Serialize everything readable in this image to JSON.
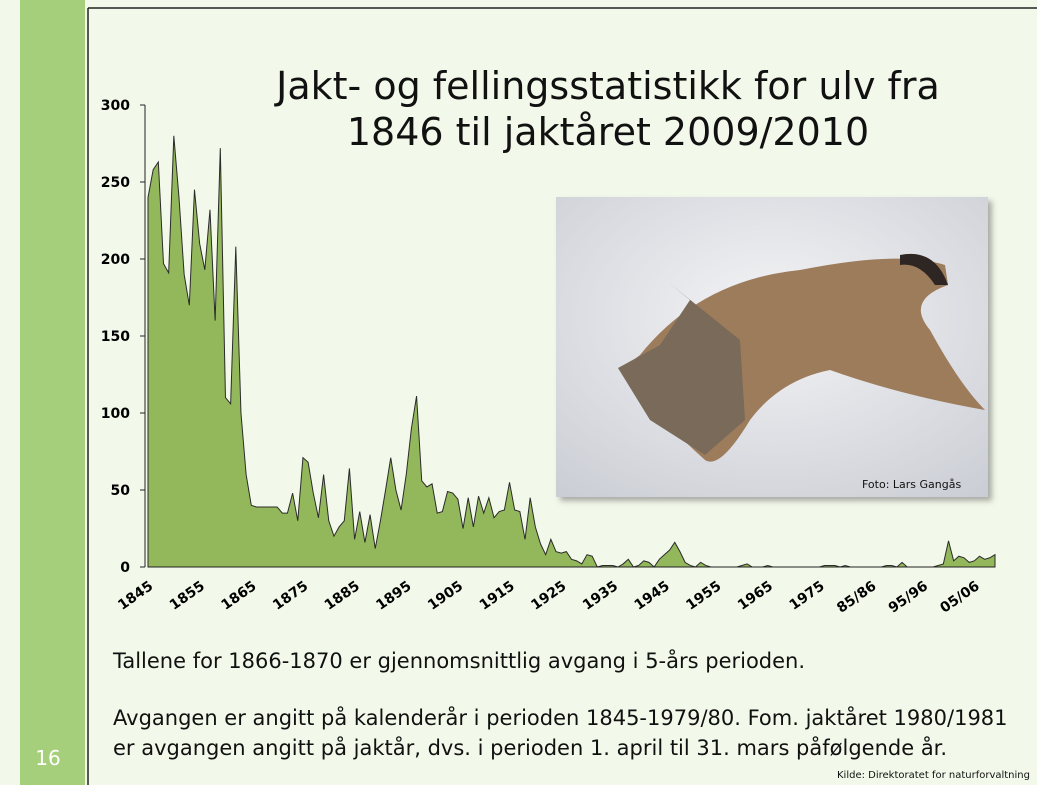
{
  "slide_number": "16",
  "chart_data": {
    "type": "area",
    "title": [
      "Jakt- og fellingsstatistikk for ulv fra",
      "1846 til jaktåret 2009/2010"
    ],
    "categories": [
      "1845",
      null,
      null,
      null,
      null,
      null,
      null,
      null,
      null,
      null,
      "1855",
      null,
      null,
      null,
      null,
      null,
      null,
      null,
      null,
      null,
      "1865",
      null,
      null,
      null,
      null,
      null,
      null,
      null,
      null,
      null,
      "1875",
      null,
      null,
      null,
      null,
      null,
      null,
      null,
      null,
      null,
      "1885",
      null,
      null,
      null,
      null,
      null,
      null,
      null,
      null,
      null,
      "1895",
      null,
      null,
      null,
      null,
      null,
      null,
      null,
      null,
      null,
      "1905",
      null,
      null,
      null,
      null,
      null,
      null,
      null,
      null,
      null,
      "1915",
      null,
      null,
      null,
      null,
      null,
      null,
      null,
      null,
      null,
      "1925",
      null,
      null,
      null,
      null,
      null,
      null,
      null,
      null,
      null,
      "1935",
      null,
      null,
      null,
      null,
      null,
      null,
      null,
      null,
      null,
      "1945",
      null,
      null,
      null,
      null,
      null,
      null,
      null,
      null,
      null,
      "1955",
      null,
      null,
      null,
      null,
      null,
      null,
      null,
      null,
      null,
      "1965",
      null,
      null,
      null,
      null,
      null,
      null,
      null,
      null,
      null,
      "1975",
      null,
      null,
      null,
      null,
      null,
      null,
      null,
      null,
      null,
      "85/86",
      null,
      null,
      null,
      null,
      null,
      null,
      null,
      null,
      null,
      "95/96",
      null,
      null,
      null,
      null,
      null,
      null,
      null,
      null,
      null,
      "05/06",
      null,
      null,
      null,
      null
    ],
    "values": [
      240,
      258,
      263,
      197,
      191,
      280,
      240,
      190,
      170,
      245,
      210,
      193,
      232,
      160,
      272,
      110,
      106,
      208,
      100,
      60,
      40,
      39,
      39,
      39,
      39,
      39,
      35,
      35,
      48,
      30,
      71,
      68,
      48,
      32,
      60,
      30,
      20,
      26,
      30,
      64,
      18,
      36,
      16,
      34,
      12,
      30,
      50,
      71,
      50,
      37,
      60,
      90,
      111,
      56,
      52,
      54,
      35,
      36,
      49,
      48,
      44,
      25,
      45,
      26,
      46,
      35,
      45,
      32,
      36,
      37,
      55,
      37,
      36,
      18,
      45,
      26,
      15,
      8,
      18,
      10,
      9,
      10,
      5,
      4,
      2,
      8,
      7,
      0,
      1,
      1,
      1,
      0,
      2,
      5,
      0,
      1,
      4,
      3,
      0,
      5,
      8,
      11,
      16,
      10,
      3,
      1,
      0,
      3,
      1,
      0,
      0,
      0,
      0,
      0,
      0,
      1,
      2,
      0,
      0,
      0,
      1,
      0,
      0,
      0,
      0,
      0,
      0,
      0,
      0,
      0,
      0,
      1,
      1,
      1,
      0,
      1,
      0,
      0,
      0,
      0,
      0,
      0,
      0,
      1,
      1,
      0,
      3,
      0,
      0,
      0,
      0,
      0,
      0,
      1,
      2,
      17,
      4,
      7,
      6,
      3,
      4,
      7,
      5,
      6,
      8
    ],
    "color": "#93b75b",
    "ylim": [
      0,
      300
    ],
    "yticks": [
      0,
      50,
      100,
      150,
      200,
      250,
      300
    ]
  },
  "photo_credit": "Foto: Lars Gangås",
  "notes": [
    "Tallene for  1866-1870 er gjennomsnittlig avgang i 5-års perioden.",
    "Avgangen er angitt på kalenderår i perioden 1845-1979/80. Fom. jaktåret 1980/1981 er avgangen angitt på jaktår, dvs. i perioden 1. april til 31. mars påfølgende år."
  ],
  "source": "Kilde: Direktoratet for naturforvaltning"
}
